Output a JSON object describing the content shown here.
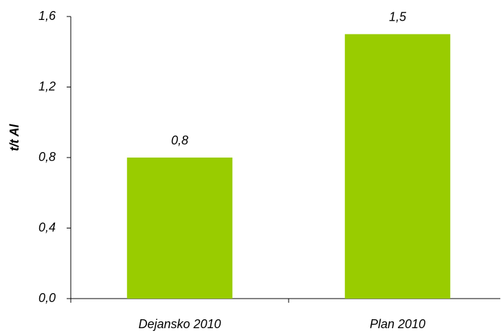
{
  "chart_data": {
    "type": "bar",
    "y_label": "t/t Al",
    "categories": [
      "Dejansko 2010",
      "Plan 2010"
    ],
    "values": [
      0.8,
      1.5
    ],
    "value_labels": [
      "0,8",
      "1,5"
    ],
    "color": "#99cc00",
    "ylim": [
      0,
      1.6
    ],
    "yticks": [
      {
        "value": 0,
        "label": "0,0"
      },
      {
        "value": 0.4,
        "label": "0,4"
      },
      {
        "value": 0.8,
        "label": "0,8"
      },
      {
        "value": 1.2,
        "label": "1,2"
      },
      {
        "value": 1.6,
        "label": "1,6"
      }
    ],
    "grid": false
  }
}
